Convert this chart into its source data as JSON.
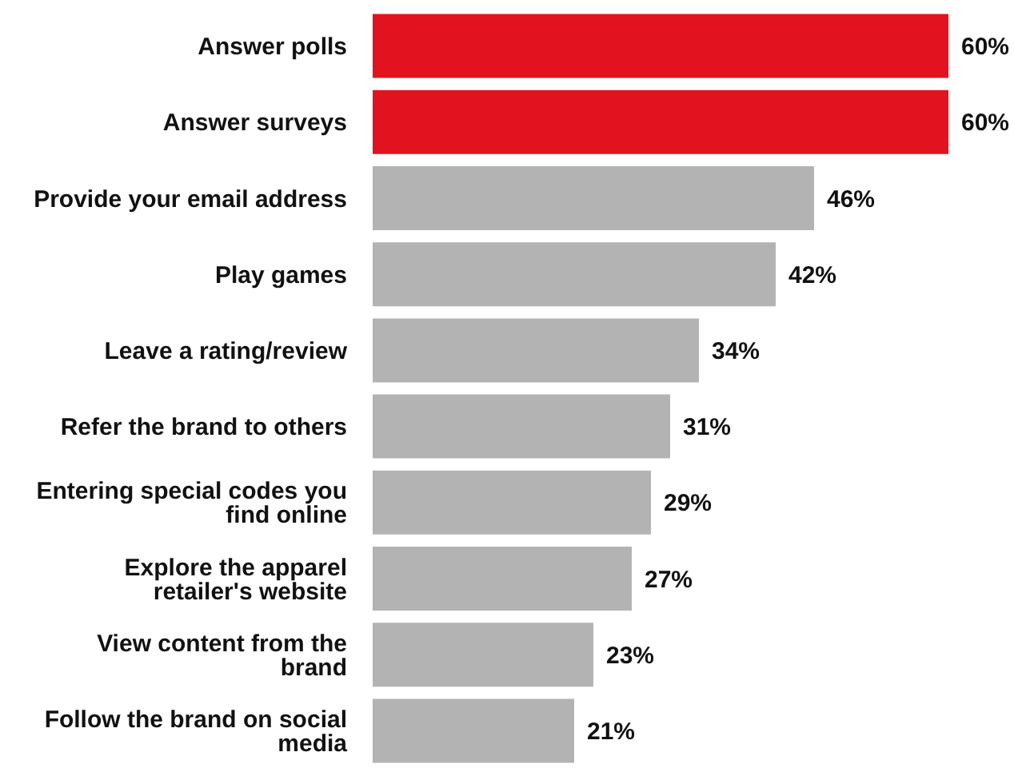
{
  "chart_data": {
    "type": "bar",
    "orientation": "horizontal",
    "categories": [
      "Answer polls",
      "Answer surveys",
      "Provide your email address",
      "Play games",
      "Leave a rating/review",
      "Refer the brand to others",
      "Entering special codes you find online",
      "Explore the apparel retailer's website",
      "View content from the brand",
      "Follow the brand on social media"
    ],
    "values": [
      60,
      60,
      46,
      42,
      34,
      31,
      29,
      27,
      23,
      21
    ],
    "value_labels": [
      "60%",
      "60%",
      "46%",
      "42%",
      "34%",
      "31%",
      "29%",
      "27%",
      "23%",
      "21%"
    ],
    "colors": [
      "#e3121f",
      "#e3121f",
      "#b3b3b3",
      "#b3b3b3",
      "#b3b3b3",
      "#b3b3b3",
      "#b3b3b3",
      "#b3b3b3",
      "#b3b3b3",
      "#b3b3b3"
    ],
    "grid": false,
    "legend": false
  }
}
